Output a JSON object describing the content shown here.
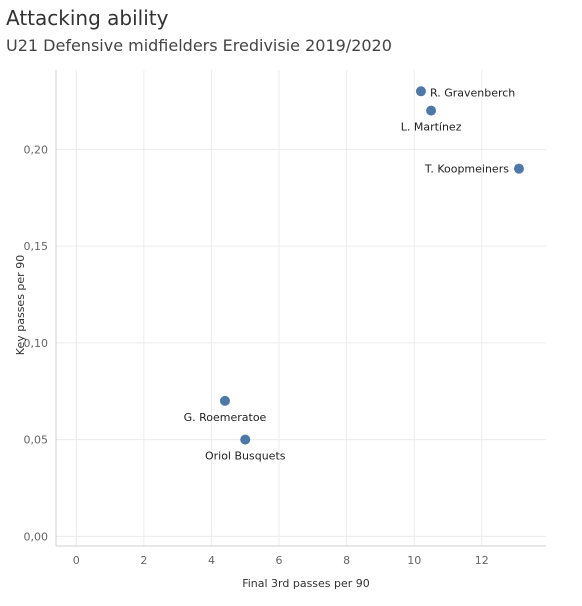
{
  "chart_data": {
    "type": "scatter",
    "title": "Attacking ability",
    "subtitle": "U21 Defensive midfielders Eredivisie 2019/2020",
    "xlabel": "Final 3rd passes per 90",
    "ylabel": "Key passes per 90",
    "xlim": [
      -0.6,
      13.9
    ],
    "ylim": [
      -0.005,
      0.241
    ],
    "xticks": [
      0,
      2,
      4,
      6,
      8,
      10,
      12
    ],
    "xtick_labels": [
      "0",
      "2",
      "4",
      "6",
      "8",
      "10",
      "12"
    ],
    "yticks": [
      0,
      0.05,
      0.1,
      0.15,
      0.2
    ],
    "ytick_labels": [
      "0,00",
      "0,05",
      "0,10",
      "0,15",
      "0,20"
    ],
    "grid": true,
    "marker_color": "#4e79a7",
    "points": [
      {
        "label": "R. Gravenberch",
        "x": 10.2,
        "y": 0.23,
        "label_side": "right"
      },
      {
        "label": "L. Martínez",
        "x": 10.5,
        "y": 0.22,
        "label_side": "below"
      },
      {
        "label": "T. Koopmeiners",
        "x": 13.1,
        "y": 0.19,
        "label_side": "left"
      },
      {
        "label": "G. Roemeratoe",
        "x": 4.4,
        "y": 0.07,
        "label_side": "below"
      },
      {
        "label": "Oriol Busquets",
        "x": 5.0,
        "y": 0.05,
        "label_side": "below"
      }
    ]
  }
}
